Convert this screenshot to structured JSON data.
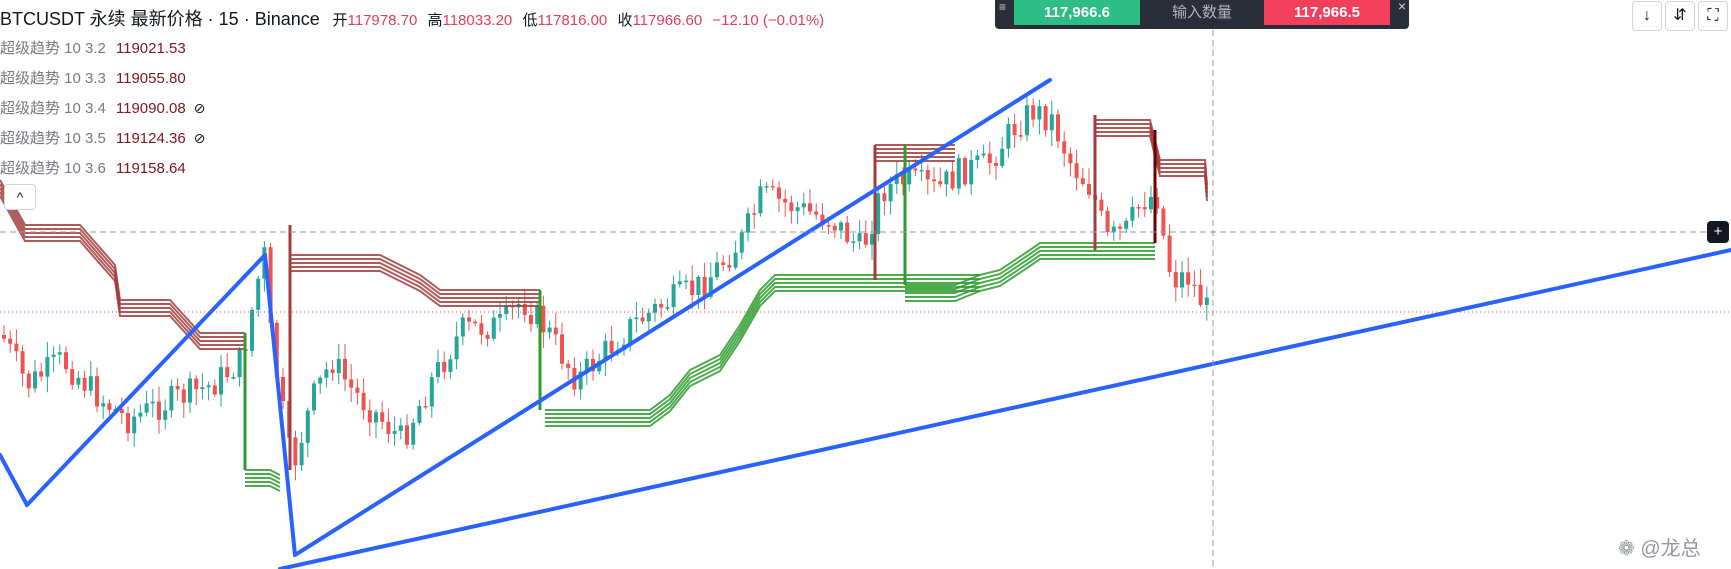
{
  "header": {
    "symbol": "BTCUSDT 永续 最新价格 · 15 · Binance",
    "ohlc": [
      {
        "label": "开",
        "value": "117978.70"
      },
      {
        "label": "高",
        "value": "118033.20"
      },
      {
        "label": "低",
        "value": "117816.00"
      },
      {
        "label": "收",
        "value": "117966.60"
      }
    ],
    "change": "−12.10 (−0.01%)"
  },
  "indicators": [
    {
      "name": "超级趋势 10 3.2",
      "value": "119021.53",
      "hidden": false
    },
    {
      "name": "超级趋势 10 3.3",
      "value": "119055.80",
      "hidden": false
    },
    {
      "name": "超级趋势 10 3.4",
      "value": "119090.08",
      "hidden": true
    },
    {
      "name": "超级趋势 10 3.5",
      "value": "119124.36",
      "hidden": true
    },
    {
      "name": "超级趋势 10 3.6",
      "value": "119158.64",
      "hidden": false
    }
  ],
  "icons": {
    "hidden": "⊘",
    "collapse": "^",
    "menu": "≡",
    "close": "×",
    "down": "↓",
    "compress": "⇵",
    "fullscreen": "⛶",
    "crosshair_plus": "+",
    "watermark_logo": "❁"
  },
  "trade": {
    "buy_price": "117,966.6",
    "qty_placeholder": "输入数量",
    "sell_price": "117,966.5"
  },
  "watermark": "@龙总",
  "colors": {
    "up": "#26a69a",
    "down": "#ef5350",
    "trend_line": "#2962ff",
    "st_up": "#2e9b2e",
    "st_down": "#a23d3d",
    "st_flip_down": "#6b0000"
  },
  "chart_data": {
    "type": "candlestick",
    "interval": "15",
    "last_close": 117966.6,
    "grid": false
  }
}
